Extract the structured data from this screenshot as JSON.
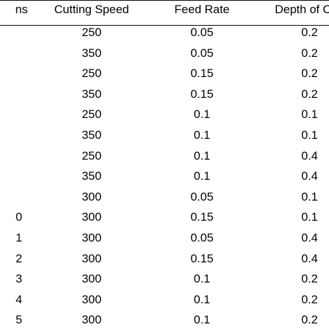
{
  "table": {
    "headers": {
      "run": "ns",
      "cutting_speed": "Cutting Speed",
      "feed_rate": "Feed Rate",
      "depth": "Depth of C"
    },
    "rows": [
      {
        "run": "",
        "cutting_speed": "250",
        "feed_rate": "0.05",
        "depth": "0.2"
      },
      {
        "run": "",
        "cutting_speed": "350",
        "feed_rate": "0.05",
        "depth": "0.2"
      },
      {
        "run": "",
        "cutting_speed": "250",
        "feed_rate": "0.15",
        "depth": "0.2"
      },
      {
        "run": "",
        "cutting_speed": "350",
        "feed_rate": "0.15",
        "depth": "0.2"
      },
      {
        "run": "",
        "cutting_speed": "250",
        "feed_rate": "0.1",
        "depth": "0.1"
      },
      {
        "run": "",
        "cutting_speed": "350",
        "feed_rate": "0.1",
        "depth": "0.1"
      },
      {
        "run": "",
        "cutting_speed": "250",
        "feed_rate": "0.1",
        "depth": "0.4"
      },
      {
        "run": "",
        "cutting_speed": "350",
        "feed_rate": "0.1",
        "depth": "0.4"
      },
      {
        "run": "",
        "cutting_speed": "300",
        "feed_rate": "0.05",
        "depth": "0.1"
      },
      {
        "run": "0",
        "cutting_speed": "300",
        "feed_rate": "0.15",
        "depth": "0.1"
      },
      {
        "run": "1",
        "cutting_speed": "300",
        "feed_rate": "0.05",
        "depth": "0.4"
      },
      {
        "run": "2",
        "cutting_speed": "300",
        "feed_rate": "0.15",
        "depth": "0.4"
      },
      {
        "run": "3",
        "cutting_speed": "300",
        "feed_rate": "0.1",
        "depth": "0.2"
      },
      {
        "run": "4",
        "cutting_speed": "300",
        "feed_rate": "0.1",
        "depth": "0.2"
      },
      {
        "run": "5",
        "cutting_speed": "300",
        "feed_rate": "0.1",
        "depth": "0.2"
      }
    ]
  }
}
